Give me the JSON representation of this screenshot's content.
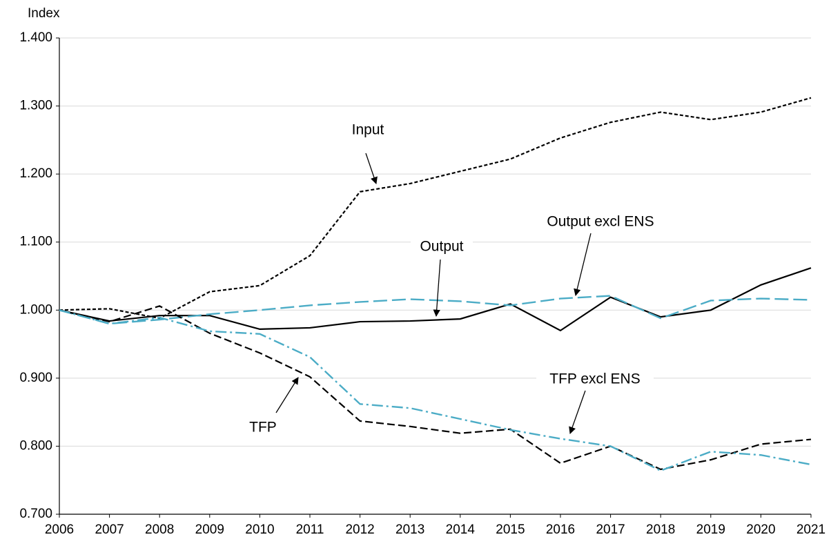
{
  "chart_data": {
    "type": "line",
    "y_label": "Index",
    "x": [
      2006,
      2007,
      2008,
      2009,
      2010,
      2011,
      2012,
      2013,
      2014,
      2015,
      2016,
      2017,
      2018,
      2019,
      2020,
      2021
    ],
    "xlim": [
      2006,
      2021
    ],
    "xticks": [
      2006,
      2007,
      2008,
      2009,
      2010,
      2011,
      2012,
      2013,
      2014,
      2015,
      2016,
      2017,
      2018,
      2019,
      2020,
      2021
    ],
    "ylim": [
      0.7,
      1.4
    ],
    "yticks": [
      {
        "value": 0.7,
        "label": "0.700"
      },
      {
        "value": 0.8,
        "label": "0.800"
      },
      {
        "value": 0.9,
        "label": "0.900"
      },
      {
        "value": 1.0,
        "label": "1.000"
      },
      {
        "value": 1.1,
        "label": "1.100"
      },
      {
        "value": 1.2,
        "label": "1.200"
      },
      {
        "value": 1.3,
        "label": "1.300"
      },
      {
        "value": 1.4,
        "label": "1.400"
      }
    ],
    "grid": true,
    "series": [
      {
        "name": "Input",
        "color": "#000000",
        "linestyle": "dotted",
        "values": [
          1.0,
          1.002,
          0.988,
          1.027,
          1.036,
          1.08,
          1.174,
          1.186,
          1.204,
          1.222,
          1.253,
          1.276,
          1.291,
          1.28,
          1.291,
          1.312
        ]
      },
      {
        "name": "Output",
        "color": "#000000",
        "linestyle": "solid",
        "values": [
          1.0,
          0.984,
          0.992,
          0.992,
          0.972,
          0.974,
          0.983,
          0.984,
          0.987,
          1.009,
          0.97,
          1.019,
          0.99,
          1.0,
          1.037,
          1.062
        ]
      },
      {
        "name": "Output excl ENS",
        "color": "#4bacc6",
        "linestyle": "longdash",
        "values": [
          1.0,
          0.98,
          0.986,
          0.994,
          1.0,
          1.007,
          1.012,
          1.016,
          1.013,
          1.007,
          1.017,
          1.021,
          0.988,
          1.014,
          1.017,
          1.015
        ]
      },
      {
        "name": "TFP",
        "color": "#000000",
        "linestyle": "dashed",
        "values": [
          1.0,
          0.983,
          1.006,
          0.966,
          0.937,
          0.902,
          0.837,
          0.829,
          0.819,
          0.825,
          0.775,
          0.8,
          0.766,
          0.78,
          0.803,
          0.81
        ]
      },
      {
        "name": "TFP excl ENS",
        "color": "#4bacc6",
        "linestyle": "dashdot",
        "values": [
          1.0,
          0.98,
          0.989,
          0.969,
          0.965,
          0.931,
          0.862,
          0.856,
          0.84,
          0.824,
          0.811,
          0.8,
          0.764,
          0.792,
          0.787,
          0.773
        ]
      }
    ]
  }
}
